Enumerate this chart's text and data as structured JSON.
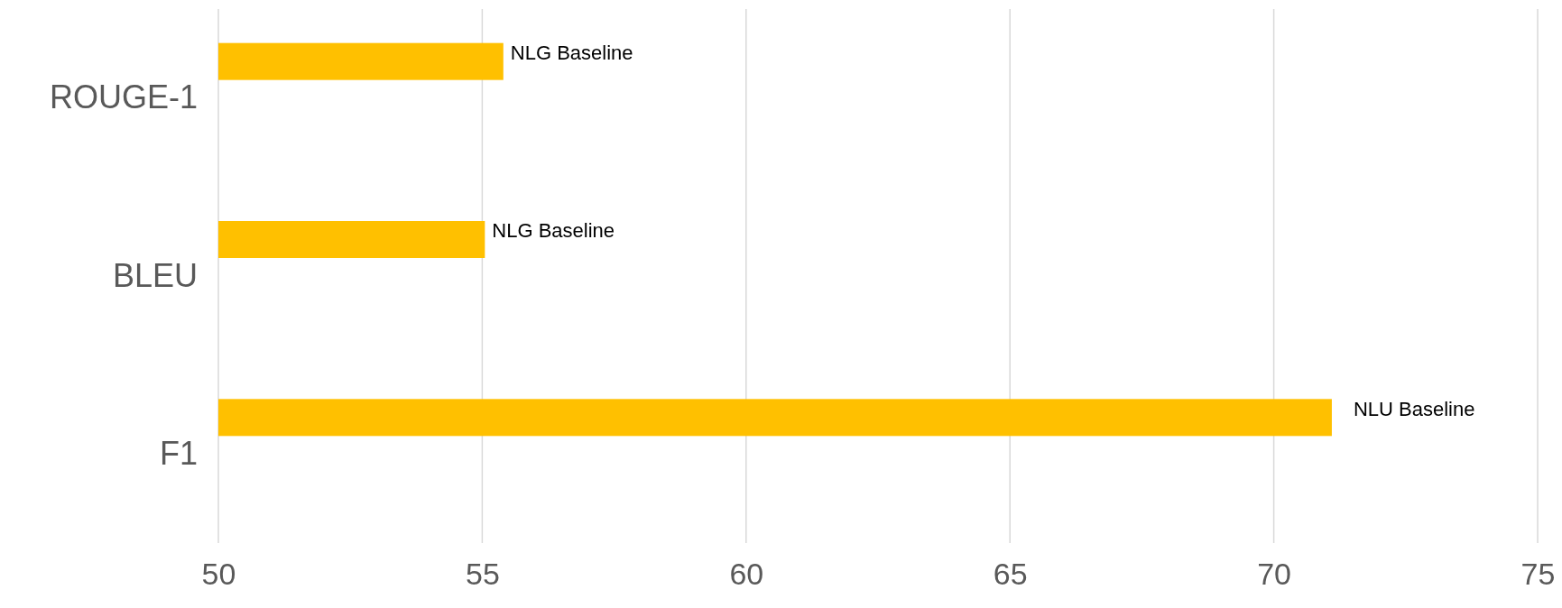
{
  "chart_data": {
    "type": "bar",
    "orientation": "horizontal",
    "categories": [
      "ROUGE-1",
      "BLEU",
      "F1"
    ],
    "values": [
      55.4,
      55.05,
      71.1
    ],
    "color": "#ffc000",
    "value_labels": [
      "NLG Baseline",
      "NLG Baseline",
      "NLU Baseline"
    ],
    "xlim": [
      50,
      75
    ],
    "xticks": [
      50,
      55,
      60,
      65,
      70,
      75
    ],
    "grid": "x"
  }
}
